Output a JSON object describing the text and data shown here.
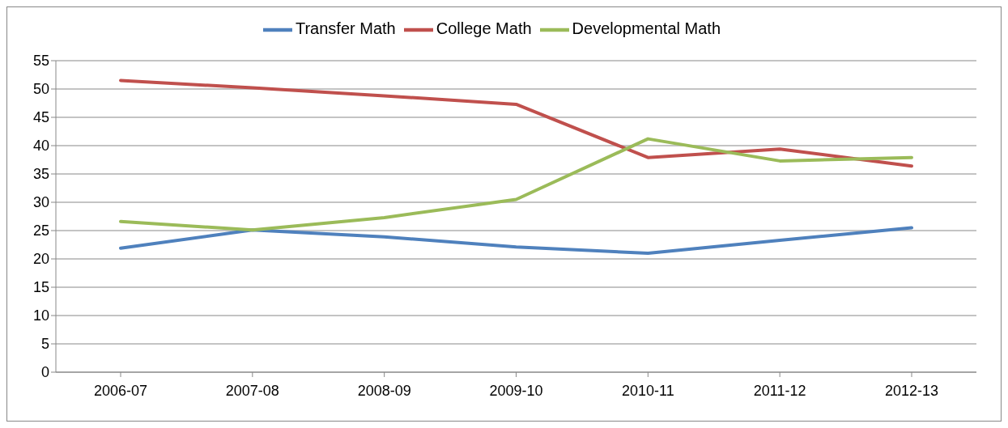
{
  "chart_data": {
    "type": "line",
    "categories": [
      "2006-07",
      "2007-08",
      "2008-09",
      "2009-10",
      "2010-11",
      "2011-12",
      "2012-13"
    ],
    "series": [
      {
        "name": "Transfer Math",
        "color": "#4f81bd",
        "values": [
          21.9,
          25.1,
          23.9,
          22.1,
          21.0,
          23.3,
          25.5
        ]
      },
      {
        "name": "College Math",
        "color": "#c0504d",
        "values": [
          51.5,
          50.2,
          48.8,
          47.3,
          37.9,
          39.4,
          36.4
        ]
      },
      {
        "name": "Developmental Math",
        "color": "#9bbb59",
        "values": [
          26.6,
          25.1,
          27.3,
          30.5,
          41.2,
          37.3,
          37.9
        ]
      }
    ],
    "ylim": [
      0,
      55
    ],
    "yticks": [
      0,
      5,
      10,
      15,
      20,
      25,
      30,
      35,
      40,
      45,
      50,
      55
    ],
    "grid": "y",
    "legend": "top",
    "marker": "none",
    "line_style": "solid"
  }
}
